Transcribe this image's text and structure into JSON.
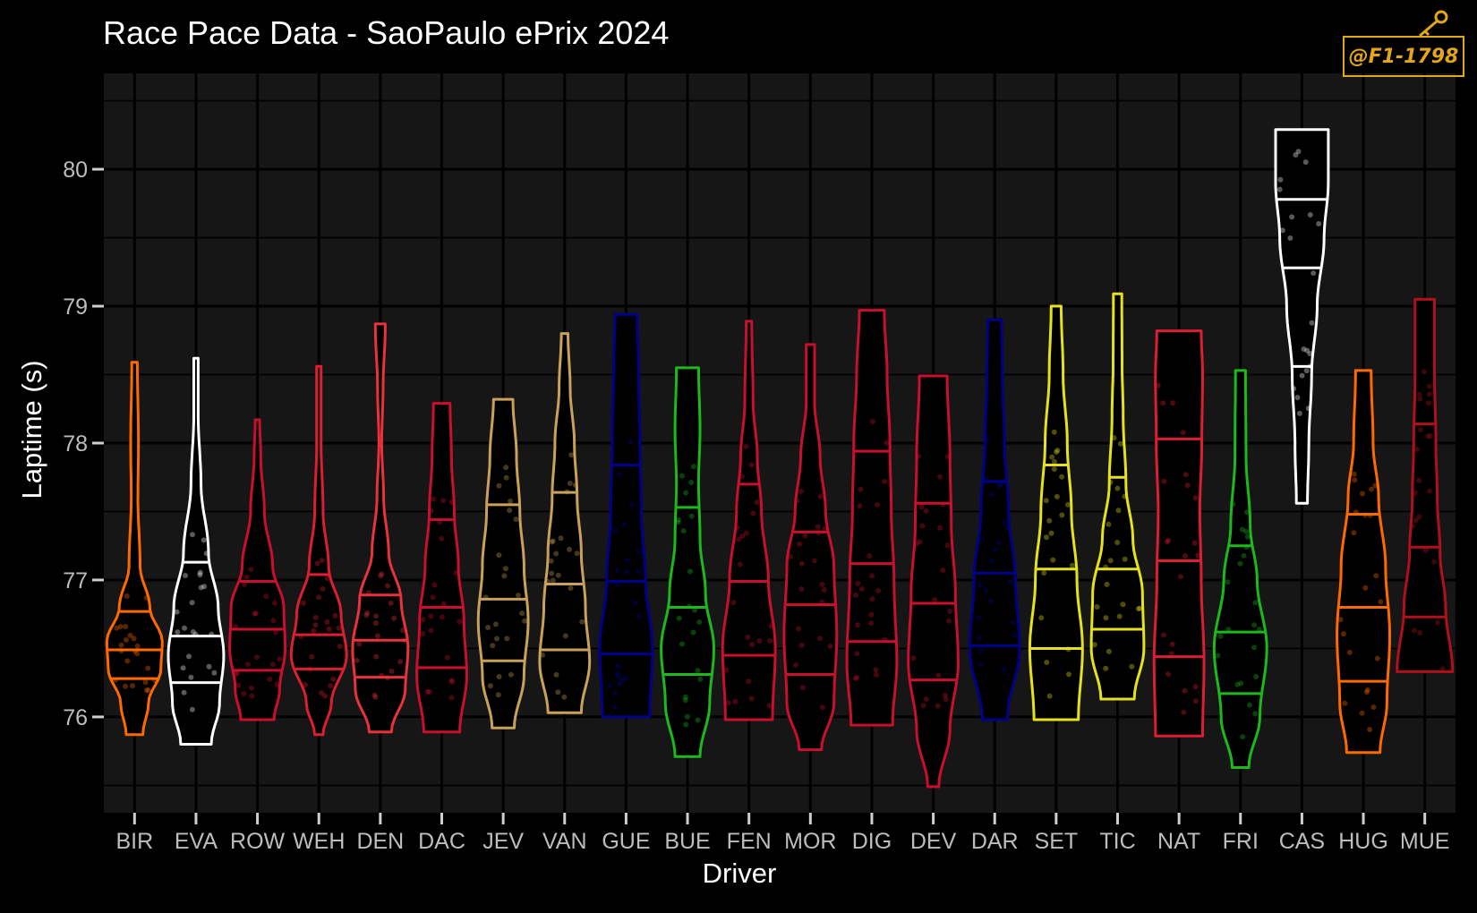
{
  "title": "Race Pace Data - SaoPaulo ePrix 2024",
  "logo_text": "@F1-1798",
  "chart_data": {
    "type": "violin",
    "title": "Race Pace Data - SaoPaulo ePrix 2024",
    "xlabel": "Driver",
    "ylabel": "Laptime (s)",
    "ylim": [
      75.3,
      80.7
    ],
    "yticks": [
      76,
      77,
      78,
      79,
      80
    ],
    "grid": true,
    "background": "#161616",
    "categories": [
      "BIR",
      "EVA",
      "ROW",
      "WEH",
      "DEN",
      "DAC",
      "JEV",
      "VAN",
      "GUE",
      "BUE",
      "FEN",
      "MOR",
      "DIG",
      "DEV",
      "DAR",
      "SET",
      "TIC",
      "NAT",
      "FRI",
      "CAS",
      "HUG",
      "MUE"
    ],
    "series": [
      {
        "driver": "BIR",
        "color": "#ff6a00",
        "min": 75.87,
        "max": 78.59,
        "q1": 76.28,
        "median": 76.49,
        "q3": 76.77,
        "profile": [
          [
            75.87,
            0.3
          ],
          [
            76.1,
            0.5
          ],
          [
            76.35,
            0.95
          ],
          [
            76.55,
            1.0
          ],
          [
            76.8,
            0.55
          ],
          [
            77.1,
            0.2
          ],
          [
            77.6,
            0.12
          ],
          [
            78.0,
            0.14
          ],
          [
            78.59,
            0.1
          ]
        ]
      },
      {
        "driver": "EVA",
        "color": "#ffffff",
        "min": 75.8,
        "max": 78.62,
        "q1": 76.25,
        "median": 76.59,
        "q3": 77.13,
        "profile": [
          [
            75.8,
            0.55
          ],
          [
            76.1,
            0.85
          ],
          [
            76.45,
            1.0
          ],
          [
            76.8,
            0.8
          ],
          [
            77.2,
            0.45
          ],
          [
            77.7,
            0.18
          ],
          [
            78.2,
            0.08
          ],
          [
            78.62,
            0.08
          ]
        ]
      },
      {
        "driver": "ROW",
        "color": "#c8102e",
        "min": 75.98,
        "max": 78.17,
        "q1": 76.34,
        "median": 76.64,
        "q3": 76.99,
        "profile": [
          [
            75.98,
            0.6
          ],
          [
            76.2,
            0.8
          ],
          [
            76.5,
            1.0
          ],
          [
            76.8,
            0.95
          ],
          [
            77.1,
            0.55
          ],
          [
            77.5,
            0.25
          ],
          [
            77.9,
            0.12
          ],
          [
            78.17,
            0.08
          ]
        ]
      },
      {
        "driver": "WEH",
        "color": "#dc1e32",
        "min": 75.87,
        "max": 78.56,
        "q1": 76.35,
        "median": 76.6,
        "q3": 77.04,
        "profile": [
          [
            75.87,
            0.15
          ],
          [
            76.1,
            0.45
          ],
          [
            76.45,
            1.0
          ],
          [
            76.75,
            0.8
          ],
          [
            77.1,
            0.35
          ],
          [
            77.5,
            0.15
          ],
          [
            78.0,
            0.08
          ],
          [
            78.56,
            0.08
          ]
        ]
      },
      {
        "driver": "DEN",
        "color": "#e8323c",
        "min": 75.89,
        "max": 78.87,
        "q1": 76.29,
        "median": 76.56,
        "q3": 76.89,
        "profile": [
          [
            75.89,
            0.4
          ],
          [
            76.2,
            0.9
          ],
          [
            76.5,
            1.0
          ],
          [
            76.85,
            0.75
          ],
          [
            77.2,
            0.3
          ],
          [
            77.6,
            0.12
          ],
          [
            78.0,
            0.05
          ],
          [
            78.4,
            0.1
          ],
          [
            78.87,
            0.18
          ]
        ]
      },
      {
        "driver": "DAC",
        "color": "#c8102e",
        "min": 75.89,
        "max": 78.29,
        "q1": 76.36,
        "median": 76.8,
        "q3": 77.44,
        "profile": [
          [
            75.89,
            0.65
          ],
          [
            76.3,
            0.9
          ],
          [
            76.7,
            0.8
          ],
          [
            77.1,
            0.6
          ],
          [
            77.5,
            0.45
          ],
          [
            77.9,
            0.35
          ],
          [
            78.29,
            0.3
          ]
        ]
      },
      {
        "driver": "JEV",
        "color": "#c9a15a",
        "min": 75.92,
        "max": 78.32,
        "q1": 76.41,
        "median": 76.86,
        "q3": 77.55,
        "profile": [
          [
            75.92,
            0.4
          ],
          [
            76.3,
            0.75
          ],
          [
            76.7,
            0.9
          ],
          [
            77.1,
            0.75
          ],
          [
            77.5,
            0.6
          ],
          [
            77.9,
            0.48
          ],
          [
            78.32,
            0.35
          ]
        ]
      },
      {
        "driver": "VAN",
        "color": "#c9a15a",
        "min": 76.03,
        "max": 78.8,
        "q1": 76.49,
        "median": 76.97,
        "q3": 77.64,
        "profile": [
          [
            76.03,
            0.6
          ],
          [
            76.4,
            0.9
          ],
          [
            76.8,
            0.75
          ],
          [
            77.2,
            0.6
          ],
          [
            77.6,
            0.45
          ],
          [
            78.0,
            0.35
          ],
          [
            78.4,
            0.2
          ],
          [
            78.8,
            0.12
          ]
        ]
      },
      {
        "driver": "GUE",
        "color": "#00008b",
        "min": 76.0,
        "max": 78.94,
        "q1": 76.46,
        "median": 76.99,
        "q3": 77.84,
        "profile": [
          [
            76.0,
            0.85
          ],
          [
            76.5,
            0.95
          ],
          [
            77.0,
            0.7
          ],
          [
            77.5,
            0.55
          ],
          [
            78.0,
            0.5
          ],
          [
            78.5,
            0.45
          ],
          [
            78.94,
            0.4
          ]
        ]
      },
      {
        "driver": "BUE",
        "color": "#1cb81c",
        "min": 75.71,
        "max": 78.55,
        "q1": 76.31,
        "median": 76.8,
        "q3": 77.53,
        "profile": [
          [
            75.71,
            0.45
          ],
          [
            76.1,
            0.8
          ],
          [
            76.5,
            0.95
          ],
          [
            76.9,
            0.65
          ],
          [
            77.3,
            0.45
          ],
          [
            77.7,
            0.4
          ],
          [
            78.1,
            0.45
          ],
          [
            78.55,
            0.4
          ]
        ]
      },
      {
        "driver": "FEN",
        "color": "#c8102e",
        "min": 75.98,
        "max": 78.89,
        "q1": 76.45,
        "median": 76.99,
        "q3": 77.7,
        "profile": [
          [
            75.98,
            0.85
          ],
          [
            76.5,
            0.95
          ],
          [
            77.0,
            0.7
          ],
          [
            77.5,
            0.45
          ],
          [
            77.9,
            0.3
          ],
          [
            78.3,
            0.15
          ],
          [
            78.89,
            0.1
          ]
        ]
      },
      {
        "driver": "MOR",
        "color": "#c8102e",
        "min": 75.76,
        "max": 78.72,
        "q1": 76.31,
        "median": 76.82,
        "q3": 77.35,
        "profile": [
          [
            75.76,
            0.4
          ],
          [
            76.1,
            0.85
          ],
          [
            76.6,
            0.95
          ],
          [
            77.1,
            0.85
          ],
          [
            77.5,
            0.55
          ],
          [
            77.9,
            0.35
          ],
          [
            78.3,
            0.15
          ],
          [
            78.72,
            0.15
          ]
        ]
      },
      {
        "driver": "DIG",
        "color": "#c8102e",
        "min": 75.94,
        "max": 78.97,
        "q1": 76.55,
        "median": 77.12,
        "q3": 77.94,
        "profile": [
          [
            75.94,
            0.75
          ],
          [
            76.4,
            0.9
          ],
          [
            77.0,
            0.8
          ],
          [
            77.5,
            0.7
          ],
          [
            78.0,
            0.65
          ],
          [
            78.5,
            0.55
          ],
          [
            78.97,
            0.45
          ]
        ]
      },
      {
        "driver": "DEV",
        "color": "#c8102e",
        "min": 75.49,
        "max": 78.49,
        "q1": 76.27,
        "median": 76.83,
        "q3": 77.56,
        "profile": [
          [
            75.49,
            0.2
          ],
          [
            75.9,
            0.6
          ],
          [
            76.4,
            0.9
          ],
          [
            76.9,
            0.8
          ],
          [
            77.4,
            0.65
          ],
          [
            77.9,
            0.6
          ],
          [
            78.49,
            0.5
          ]
        ]
      },
      {
        "driver": "DAR",
        "color": "#00008b",
        "min": 75.98,
        "max": 78.9,
        "q1": 76.52,
        "median": 77.05,
        "q3": 77.72,
        "profile": [
          [
            75.98,
            0.45
          ],
          [
            76.5,
            0.9
          ],
          [
            77.0,
            0.75
          ],
          [
            77.5,
            0.5
          ],
          [
            78.0,
            0.35
          ],
          [
            78.5,
            0.28
          ],
          [
            78.9,
            0.25
          ]
        ]
      },
      {
        "driver": "SET",
        "color": "#e5e21c",
        "min": 75.98,
        "max": 79.0,
        "q1": 76.5,
        "median": 77.08,
        "q3": 77.84,
        "profile": [
          [
            75.98,
            0.8
          ],
          [
            76.5,
            0.95
          ],
          [
            77.0,
            0.75
          ],
          [
            77.5,
            0.55
          ],
          [
            78.0,
            0.4
          ],
          [
            78.5,
            0.25
          ],
          [
            79.0,
            0.18
          ]
        ]
      },
      {
        "driver": "TIC",
        "color": "#e5e21c",
        "min": 76.13,
        "max": 79.09,
        "q1": 76.64,
        "median": 77.08,
        "q3": 77.75,
        "profile": [
          [
            76.13,
            0.6
          ],
          [
            76.5,
            0.95
          ],
          [
            76.9,
            0.9
          ],
          [
            77.3,
            0.55
          ],
          [
            77.7,
            0.3
          ],
          [
            78.2,
            0.2
          ],
          [
            78.6,
            0.16
          ],
          [
            79.09,
            0.15
          ]
        ]
      },
      {
        "driver": "NAT",
        "color": "#dc1e32",
        "min": 75.86,
        "max": 78.82,
        "q1": 76.44,
        "median": 77.14,
        "q3": 78.03,
        "profile": [
          [
            75.86,
            0.85
          ],
          [
            76.4,
            0.9
          ],
          [
            77.0,
            0.8
          ],
          [
            77.5,
            0.75
          ],
          [
            78.0,
            0.82
          ],
          [
            78.5,
            0.85
          ],
          [
            78.82,
            0.8
          ]
        ]
      },
      {
        "driver": "FRI",
        "color": "#1cb81c",
        "min": 75.63,
        "max": 78.53,
        "q1": 76.17,
        "median": 76.62,
        "q3": 77.25,
        "profile": [
          [
            75.63,
            0.3
          ],
          [
            76.0,
            0.7
          ],
          [
            76.5,
            0.95
          ],
          [
            77.0,
            0.6
          ],
          [
            77.4,
            0.35
          ],
          [
            77.9,
            0.2
          ],
          [
            78.53,
            0.18
          ]
        ]
      },
      {
        "driver": "CAS",
        "color": "#ffffff",
        "min": 77.56,
        "max": 80.29,
        "q1": 78.56,
        "median": 79.28,
        "q3": 79.78,
        "profile": [
          [
            77.56,
            0.2
          ],
          [
            78.0,
            0.25
          ],
          [
            78.5,
            0.35
          ],
          [
            79.0,
            0.55
          ],
          [
            79.5,
            0.8
          ],
          [
            79.9,
            0.95
          ],
          [
            80.29,
            0.95
          ]
        ]
      },
      {
        "driver": "HUG",
        "color": "#ff6a00",
        "min": 75.74,
        "max": 78.53,
        "q1": 76.26,
        "median": 76.8,
        "q3": 77.48,
        "profile": [
          [
            75.74,
            0.6
          ],
          [
            76.1,
            0.85
          ],
          [
            76.6,
            0.95
          ],
          [
            77.1,
            0.8
          ],
          [
            77.6,
            0.55
          ],
          [
            78.0,
            0.35
          ],
          [
            78.53,
            0.28
          ]
        ]
      },
      {
        "driver": "MUE",
        "color": "#b0101c",
        "min": 76.33,
        "max": 79.05,
        "q1": 76.73,
        "median": 77.24,
        "q3": 78.14,
        "profile": [
          [
            76.33,
            1.0
          ],
          [
            76.8,
            0.75
          ],
          [
            77.2,
            0.55
          ],
          [
            77.6,
            0.45
          ],
          [
            78.0,
            0.4
          ],
          [
            78.5,
            0.35
          ],
          [
            79.05,
            0.35
          ]
        ]
      }
    ]
  }
}
